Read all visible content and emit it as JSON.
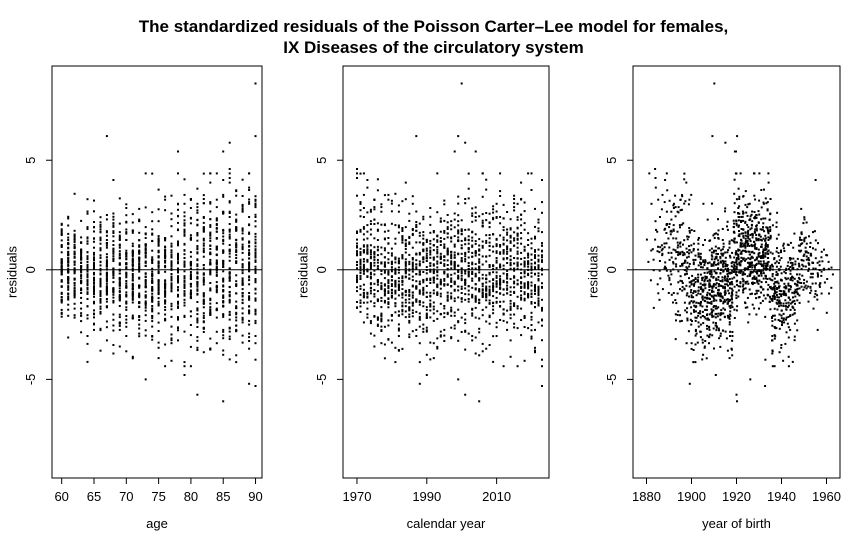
{
  "figure": {
    "title_line1": "The standardized residuals of the Poisson Carter–Lee model for females,",
    "title_line2": "IX Diseases of the circulatory system"
  },
  "chart_data": [
    {
      "type": "scatter",
      "xlabel": "age",
      "ylabel": "residuals",
      "xlim": [
        58.5,
        91
      ],
      "ylim": [
        -9.5,
        9.3
      ],
      "xticks": [
        60,
        65,
        70,
        75,
        80,
        85,
        90
      ],
      "yticks": [
        -5,
        0,
        5
      ],
      "reference_line_y": 0,
      "x_range": [
        60,
        90
      ],
      "x_step": 1,
      "points_per_x": 54,
      "residual_spread": "approximately -3 to +4, widening at older ages",
      "notable_points": [
        {
          "x": 67,
          "y": 6.1
        },
        {
          "x": 78,
          "y": 5.4
        },
        {
          "x": 85,
          "y": 5.4
        },
        {
          "x": 86,
          "y": 4.7
        },
        {
          "x": 90,
          "y": 8.5
        },
        {
          "x": 90,
          "y": 6.2
        },
        {
          "x": 73,
          "y": -5.0
        },
        {
          "x": 79,
          "y": -4.8
        },
        {
          "x": 81,
          "y": -5.7
        },
        {
          "x": 85,
          "y": -6.0
        },
        {
          "x": 89,
          "y": -5.4
        },
        {
          "x": 90,
          "y": -5.2
        },
        {
          "x": 64,
          "y": -4.2
        }
      ]
    },
    {
      "type": "scatter",
      "xlabel": "calendar year",
      "ylabel": "residuals",
      "xlim": [
        1966,
        2025
      ],
      "ylim": [
        -9.5,
        9.3
      ],
      "xticks": [
        1970,
        1990,
        2010
      ],
      "yticks": [
        -5,
        0,
        5
      ],
      "reference_line_y": 0,
      "x_range": [
        1970,
        2023
      ],
      "x_step": 1,
      "points_per_x": 31,
      "residual_spread": "approximately -3 to +3.5, larger positive residuals in the early 1970s",
      "notable_points": [
        {
          "x": 2000,
          "y": 8.5
        },
        {
          "x": 1987,
          "y": 6.1
        },
        {
          "x": 1999,
          "y": 6.1
        },
        {
          "x": 2004,
          "y": 5.4
        },
        {
          "x": 2001,
          "y": 5.8
        },
        {
          "x": 1970,
          "y": 4.6
        },
        {
          "x": 2023,
          "y": 4.1
        },
        {
          "x": 2005,
          "y": -6.0
        },
        {
          "x": 2001,
          "y": -5.7
        },
        {
          "x": 1988,
          "y": -5.2
        },
        {
          "x": 1999,
          "y": -5.0
        },
        {
          "x": 2023,
          "y": -5.3
        }
      ]
    },
    {
      "type": "scatter",
      "xlabel": "year of birth",
      "ylabel": "residuals",
      "xlim": [
        1874,
        1966
      ],
      "ylim": [
        -9.5,
        9.3
      ],
      "xticks": [
        1880,
        1900,
        1920,
        1940,
        1960
      ],
      "yticks": [
        -5,
        0,
        5
      ],
      "reference_line_y": 0,
      "x_range": [
        1880,
        1963
      ],
      "x_step": 1,
      "point_count_note": "one point per age-year cell (year of birth = calendar year - age)",
      "residual_spread": "cohort pattern: mostly negative for 1900-1918, jump to positive around 1920-1935, negative again around 1935-1945",
      "notable_points": [
        {
          "x": 1909,
          "y": 8.5
        },
        {
          "x": 1908,
          "y": 6.2
        },
        {
          "x": 1919,
          "y": 6.1
        },
        {
          "x": 1920,
          "y": 5.4
        },
        {
          "x": 1884,
          "y": 4.6
        },
        {
          "x": 1955,
          "y": 4.1
        },
        {
          "x": 1919,
          "y": -6.0
        },
        {
          "x": 1916,
          "y": -5.7
        },
        {
          "x": 1896,
          "y": -5.2
        },
        {
          "x": 1933,
          "y": -5.3
        },
        {
          "x": 1945,
          "y": -4.3
        }
      ]
    }
  ]
}
